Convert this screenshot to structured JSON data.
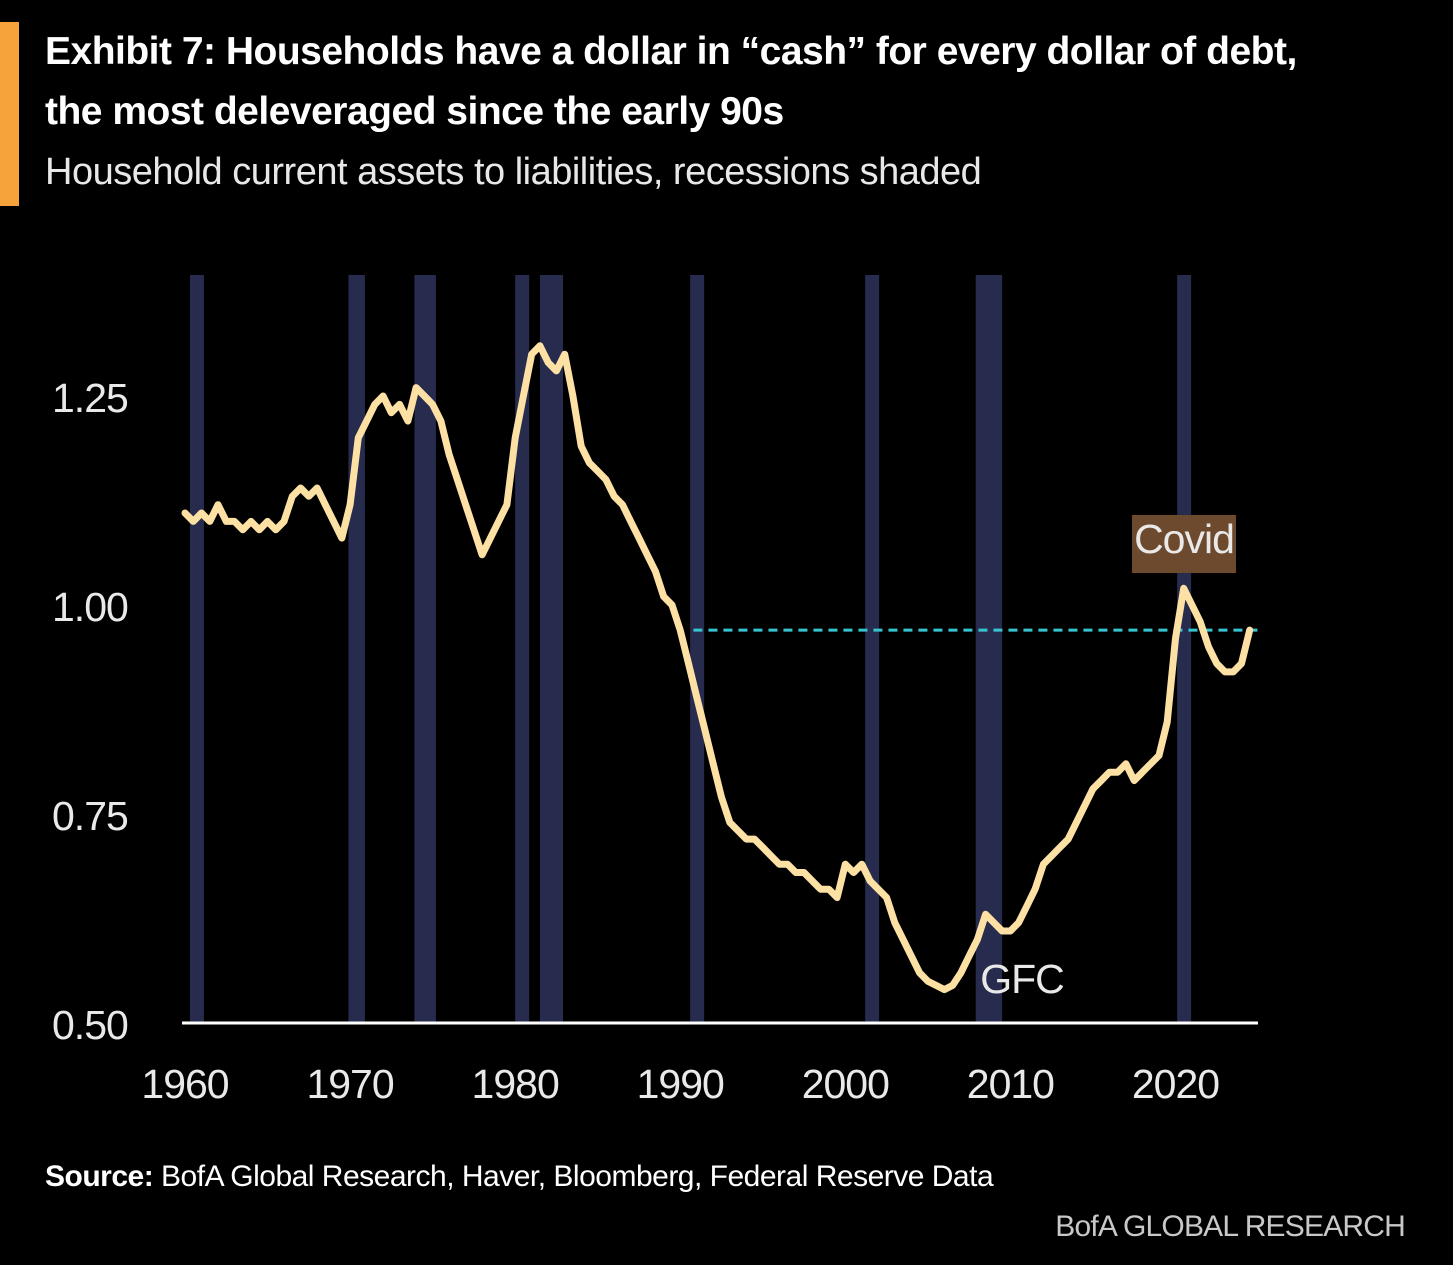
{
  "header": {
    "title_line1": "Exhibit 7: Households have a dollar in “cash” for every dollar of debt,",
    "title_line2": "the most deleveraged since the early 90s",
    "subtitle": "Household current assets to liabilities, recessions shaded"
  },
  "footer": {
    "source_label": "Source:",
    "source_text": " BofA Global Research, Haver, Bloomberg, Federal Reserve Data",
    "branding": "BofA GLOBAL RESEARCH"
  },
  "colors": {
    "accent": "#f5a33a",
    "line": "#fde0a3",
    "recession": "#272c4f",
    "reference_line": "#35c4d0",
    "axis": "#ffffff",
    "covid_label_bg": "#6d4a2e"
  },
  "chart_data": {
    "type": "line",
    "title": "Household current assets to liabilities, recessions shaded",
    "xlabel": "",
    "ylabel": "",
    "xlim": [
      1960,
      2025
    ],
    "ylim": [
      0.5,
      1.35
    ],
    "x_ticks": [
      "1960",
      "1970",
      "1980",
      "1990",
      "2000",
      "2010",
      "2020"
    ],
    "y_ticks": [
      "0.50",
      "0.75",
      "1.00",
      "1.25"
    ],
    "recessions": [
      [
        1960.3,
        1961.1
      ],
      [
        1969.9,
        1970.9
      ],
      [
        1973.9,
        1975.2
      ],
      [
        1980.0,
        1980.6
      ],
      [
        1981.5,
        1982.9
      ],
      [
        1990.6,
        1991.2
      ],
      [
        2001.2,
        2001.9
      ],
      [
        2007.9,
        2009.5
      ],
      [
        2020.1,
        2020.4
      ]
    ],
    "reference_line": {
      "y": 0.97,
      "x_start": 1990.8,
      "x_end": 2025.0,
      "style": "dashed"
    },
    "annotations": [
      {
        "text": "Covid",
        "x": 2020.3,
        "y": 1.06,
        "boxed": true
      },
      {
        "text": "GFC",
        "x": 2010.6,
        "y": 0.555,
        "boxed": false
      }
    ],
    "series": [
      {
        "name": "Household current assets to liabilities",
        "x": [
          1960.0,
          1960.5,
          1961.0,
          1961.5,
          1962.0,
          1962.5,
          1963.0,
          1963.5,
          1964.0,
          1964.5,
          1965.0,
          1965.5,
          1966.0,
          1966.5,
          1967.0,
          1967.5,
          1968.0,
          1968.5,
          1969.0,
          1969.5,
          1970.0,
          1970.5,
          1971.0,
          1971.5,
          1972.0,
          1972.5,
          1973.0,
          1973.5,
          1974.0,
          1974.5,
          1975.0,
          1975.5,
          1976.0,
          1976.5,
          1977.0,
          1977.5,
          1978.0,
          1978.5,
          1979.0,
          1979.5,
          1980.0,
          1980.5,
          1981.0,
          1981.5,
          1982.0,
          1982.5,
          1983.0,
          1983.5,
          1984.0,
          1984.5,
          1985.0,
          1985.5,
          1986.0,
          1986.5,
          1987.0,
          1987.5,
          1988.0,
          1988.5,
          1989.0,
          1989.5,
          1990.0,
          1990.5,
          1991.0,
          1991.5,
          1992.0,
          1992.5,
          1993.0,
          1993.5,
          1994.0,
          1994.5,
          1995.0,
          1995.5,
          1996.0,
          1996.5,
          1997.0,
          1997.5,
          1998.0,
          1998.5,
          1999.0,
          1999.5,
          2000.0,
          2000.5,
          2001.0,
          2001.5,
          2002.0,
          2002.5,
          2003.0,
          2003.5,
          2004.0,
          2004.5,
          2005.0,
          2005.5,
          2006.0,
          2006.5,
          2007.0,
          2007.5,
          2008.0,
          2008.5,
          2009.0,
          2009.5,
          2010.0,
          2010.5,
          2011.0,
          2011.5,
          2012.0,
          2012.5,
          2013.0,
          2013.5,
          2014.0,
          2014.5,
          2015.0,
          2015.5,
          2016.0,
          2016.5,
          2017.0,
          2017.5,
          2018.0,
          2018.5,
          2019.0,
          2019.5,
          2020.0,
          2020.5,
          2021.0,
          2021.5,
          2022.0,
          2022.5,
          2023.0,
          2023.5,
          2024.0,
          2024.5
        ],
        "values": [
          1.11,
          1.1,
          1.11,
          1.1,
          1.12,
          1.1,
          1.1,
          1.09,
          1.1,
          1.09,
          1.1,
          1.09,
          1.1,
          1.13,
          1.14,
          1.13,
          1.14,
          1.12,
          1.1,
          1.08,
          1.12,
          1.2,
          1.22,
          1.24,
          1.25,
          1.23,
          1.24,
          1.22,
          1.26,
          1.25,
          1.24,
          1.22,
          1.18,
          1.15,
          1.12,
          1.09,
          1.06,
          1.08,
          1.1,
          1.12,
          1.2,
          1.25,
          1.3,
          1.31,
          1.29,
          1.28,
          1.3,
          1.25,
          1.19,
          1.17,
          1.16,
          1.15,
          1.13,
          1.12,
          1.1,
          1.08,
          1.06,
          1.04,
          1.01,
          1.0,
          0.97,
          0.93,
          0.89,
          0.85,
          0.81,
          0.77,
          0.74,
          0.73,
          0.72,
          0.72,
          0.71,
          0.7,
          0.69,
          0.69,
          0.68,
          0.68,
          0.67,
          0.66,
          0.66,
          0.65,
          0.69,
          0.68,
          0.69,
          0.67,
          0.66,
          0.65,
          0.62,
          0.6,
          0.58,
          0.56,
          0.55,
          0.545,
          0.54,
          0.545,
          0.56,
          0.58,
          0.6,
          0.63,
          0.62,
          0.61,
          0.61,
          0.62,
          0.64,
          0.66,
          0.69,
          0.7,
          0.71,
          0.72,
          0.74,
          0.76,
          0.78,
          0.79,
          0.8,
          0.8,
          0.81,
          0.79,
          0.8,
          0.81,
          0.82,
          0.86,
          0.96,
          1.02,
          1.0,
          0.98,
          0.95,
          0.93,
          0.92,
          0.92,
          0.93,
          0.97
        ]
      }
    ]
  }
}
